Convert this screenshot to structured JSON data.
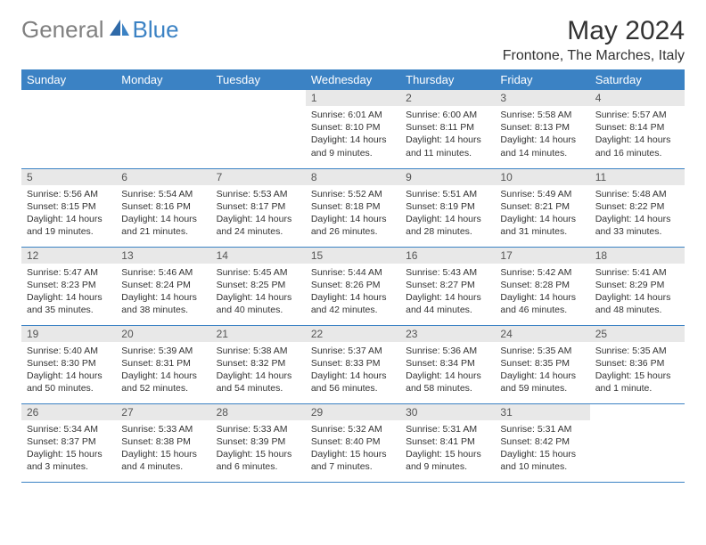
{
  "logo": {
    "part1": "General",
    "part2": "Blue"
  },
  "title": "May 2024",
  "location": "Frontone, The Marches, Italy",
  "colors": {
    "header_bg": "#3b82c4",
    "header_text": "#ffffff",
    "daybar_bg": "#e8e8e8",
    "logo_gray": "#808080",
    "logo_blue": "#3b82c4"
  },
  "weekdays": [
    "Sunday",
    "Monday",
    "Tuesday",
    "Wednesday",
    "Thursday",
    "Friday",
    "Saturday"
  ],
  "weeks": [
    [
      {
        "day": "",
        "sunrise": "",
        "sunset": "",
        "daylight": ""
      },
      {
        "day": "",
        "sunrise": "",
        "sunset": "",
        "daylight": ""
      },
      {
        "day": "",
        "sunrise": "",
        "sunset": "",
        "daylight": ""
      },
      {
        "day": "1",
        "sunrise": "Sunrise: 6:01 AM",
        "sunset": "Sunset: 8:10 PM",
        "daylight": "Daylight: 14 hours and 9 minutes."
      },
      {
        "day": "2",
        "sunrise": "Sunrise: 6:00 AM",
        "sunset": "Sunset: 8:11 PM",
        "daylight": "Daylight: 14 hours and 11 minutes."
      },
      {
        "day": "3",
        "sunrise": "Sunrise: 5:58 AM",
        "sunset": "Sunset: 8:13 PM",
        "daylight": "Daylight: 14 hours and 14 minutes."
      },
      {
        "day": "4",
        "sunrise": "Sunrise: 5:57 AM",
        "sunset": "Sunset: 8:14 PM",
        "daylight": "Daylight: 14 hours and 16 minutes."
      }
    ],
    [
      {
        "day": "5",
        "sunrise": "Sunrise: 5:56 AM",
        "sunset": "Sunset: 8:15 PM",
        "daylight": "Daylight: 14 hours and 19 minutes."
      },
      {
        "day": "6",
        "sunrise": "Sunrise: 5:54 AM",
        "sunset": "Sunset: 8:16 PM",
        "daylight": "Daylight: 14 hours and 21 minutes."
      },
      {
        "day": "7",
        "sunrise": "Sunrise: 5:53 AM",
        "sunset": "Sunset: 8:17 PM",
        "daylight": "Daylight: 14 hours and 24 minutes."
      },
      {
        "day": "8",
        "sunrise": "Sunrise: 5:52 AM",
        "sunset": "Sunset: 8:18 PM",
        "daylight": "Daylight: 14 hours and 26 minutes."
      },
      {
        "day": "9",
        "sunrise": "Sunrise: 5:51 AM",
        "sunset": "Sunset: 8:19 PM",
        "daylight": "Daylight: 14 hours and 28 minutes."
      },
      {
        "day": "10",
        "sunrise": "Sunrise: 5:49 AM",
        "sunset": "Sunset: 8:21 PM",
        "daylight": "Daylight: 14 hours and 31 minutes."
      },
      {
        "day": "11",
        "sunrise": "Sunrise: 5:48 AM",
        "sunset": "Sunset: 8:22 PM",
        "daylight": "Daylight: 14 hours and 33 minutes."
      }
    ],
    [
      {
        "day": "12",
        "sunrise": "Sunrise: 5:47 AM",
        "sunset": "Sunset: 8:23 PM",
        "daylight": "Daylight: 14 hours and 35 minutes."
      },
      {
        "day": "13",
        "sunrise": "Sunrise: 5:46 AM",
        "sunset": "Sunset: 8:24 PM",
        "daylight": "Daylight: 14 hours and 38 minutes."
      },
      {
        "day": "14",
        "sunrise": "Sunrise: 5:45 AM",
        "sunset": "Sunset: 8:25 PM",
        "daylight": "Daylight: 14 hours and 40 minutes."
      },
      {
        "day": "15",
        "sunrise": "Sunrise: 5:44 AM",
        "sunset": "Sunset: 8:26 PM",
        "daylight": "Daylight: 14 hours and 42 minutes."
      },
      {
        "day": "16",
        "sunrise": "Sunrise: 5:43 AM",
        "sunset": "Sunset: 8:27 PM",
        "daylight": "Daylight: 14 hours and 44 minutes."
      },
      {
        "day": "17",
        "sunrise": "Sunrise: 5:42 AM",
        "sunset": "Sunset: 8:28 PM",
        "daylight": "Daylight: 14 hours and 46 minutes."
      },
      {
        "day": "18",
        "sunrise": "Sunrise: 5:41 AM",
        "sunset": "Sunset: 8:29 PM",
        "daylight": "Daylight: 14 hours and 48 minutes."
      }
    ],
    [
      {
        "day": "19",
        "sunrise": "Sunrise: 5:40 AM",
        "sunset": "Sunset: 8:30 PM",
        "daylight": "Daylight: 14 hours and 50 minutes."
      },
      {
        "day": "20",
        "sunrise": "Sunrise: 5:39 AM",
        "sunset": "Sunset: 8:31 PM",
        "daylight": "Daylight: 14 hours and 52 minutes."
      },
      {
        "day": "21",
        "sunrise": "Sunrise: 5:38 AM",
        "sunset": "Sunset: 8:32 PM",
        "daylight": "Daylight: 14 hours and 54 minutes."
      },
      {
        "day": "22",
        "sunrise": "Sunrise: 5:37 AM",
        "sunset": "Sunset: 8:33 PM",
        "daylight": "Daylight: 14 hours and 56 minutes."
      },
      {
        "day": "23",
        "sunrise": "Sunrise: 5:36 AM",
        "sunset": "Sunset: 8:34 PM",
        "daylight": "Daylight: 14 hours and 58 minutes."
      },
      {
        "day": "24",
        "sunrise": "Sunrise: 5:35 AM",
        "sunset": "Sunset: 8:35 PM",
        "daylight": "Daylight: 14 hours and 59 minutes."
      },
      {
        "day": "25",
        "sunrise": "Sunrise: 5:35 AM",
        "sunset": "Sunset: 8:36 PM",
        "daylight": "Daylight: 15 hours and 1 minute."
      }
    ],
    [
      {
        "day": "26",
        "sunrise": "Sunrise: 5:34 AM",
        "sunset": "Sunset: 8:37 PM",
        "daylight": "Daylight: 15 hours and 3 minutes."
      },
      {
        "day": "27",
        "sunrise": "Sunrise: 5:33 AM",
        "sunset": "Sunset: 8:38 PM",
        "daylight": "Daylight: 15 hours and 4 minutes."
      },
      {
        "day": "28",
        "sunrise": "Sunrise: 5:33 AM",
        "sunset": "Sunset: 8:39 PM",
        "daylight": "Daylight: 15 hours and 6 minutes."
      },
      {
        "day": "29",
        "sunrise": "Sunrise: 5:32 AM",
        "sunset": "Sunset: 8:40 PM",
        "daylight": "Daylight: 15 hours and 7 minutes."
      },
      {
        "day": "30",
        "sunrise": "Sunrise: 5:31 AM",
        "sunset": "Sunset: 8:41 PM",
        "daylight": "Daylight: 15 hours and 9 minutes."
      },
      {
        "day": "31",
        "sunrise": "Sunrise: 5:31 AM",
        "sunset": "Sunset: 8:42 PM",
        "daylight": "Daylight: 15 hours and 10 minutes."
      },
      {
        "day": "",
        "sunrise": "",
        "sunset": "",
        "daylight": ""
      }
    ]
  ]
}
